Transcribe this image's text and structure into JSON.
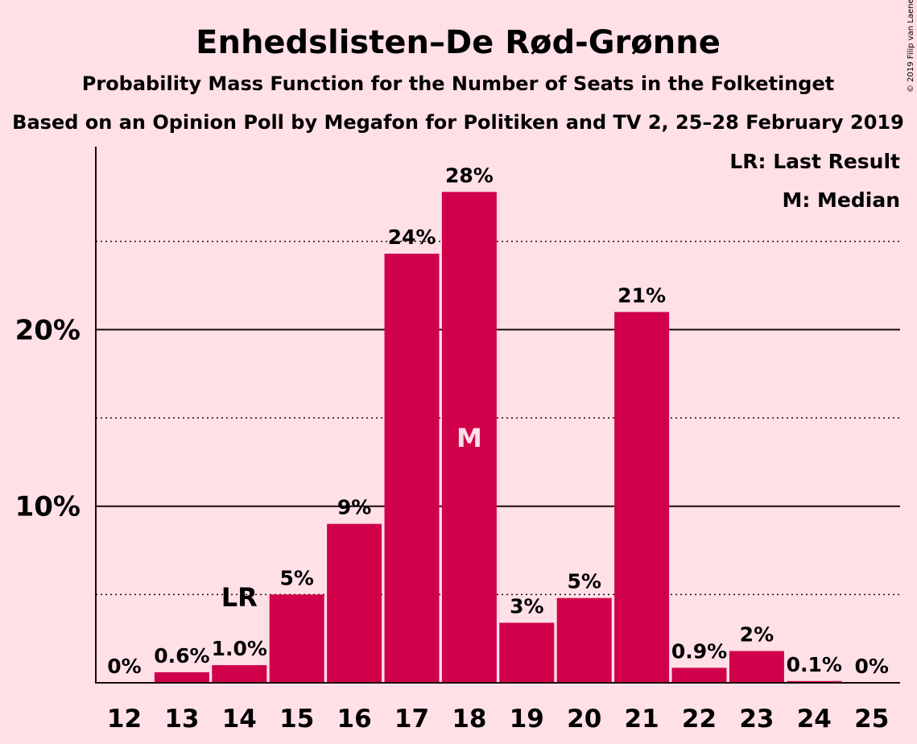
{
  "chart_data": {
    "type": "bar",
    "title": "Enhedslisten–De Rød-Grønne",
    "subtitle": "Probability Mass Function for the Number of Seats in the Folketinget",
    "subtitle2": "Based on an Opinion Poll by Megafon for Politiken and TV 2, 25–28 February 2019",
    "credit": "© 2019 Filip van Laenen",
    "legend": [
      "LR: Last Result",
      "M: Median"
    ],
    "legend_position": "top-right",
    "categories": [
      "12",
      "13",
      "14",
      "15",
      "16",
      "17",
      "18",
      "19",
      "20",
      "21",
      "22",
      "23",
      "24",
      "25"
    ],
    "values": [
      0,
      0.6,
      1.0,
      5,
      9,
      24.3,
      27.8,
      3.4,
      4.8,
      21.0,
      0.85,
      1.8,
      0.1,
      0
    ],
    "labels": [
      "0%",
      "0.6%",
      "1.0%",
      "5%",
      "9%",
      "24%",
      "28%",
      "3%",
      "5%",
      "21%",
      "0.9%",
      "2%",
      "0.1%",
      "0%"
    ],
    "yticks": [
      10,
      20
    ],
    "ytick_labels": [
      "10%",
      "20%"
    ],
    "dotted_gridlines": [
      5,
      15,
      25
    ],
    "ylim": [
      0,
      30
    ],
    "last_result": "14",
    "last_result_marker": "LR",
    "median": "18",
    "median_marker": "M",
    "colors": {
      "bar": "#d0004b",
      "background": "#ffe0e6",
      "text": "#1a0a0a"
    }
  }
}
